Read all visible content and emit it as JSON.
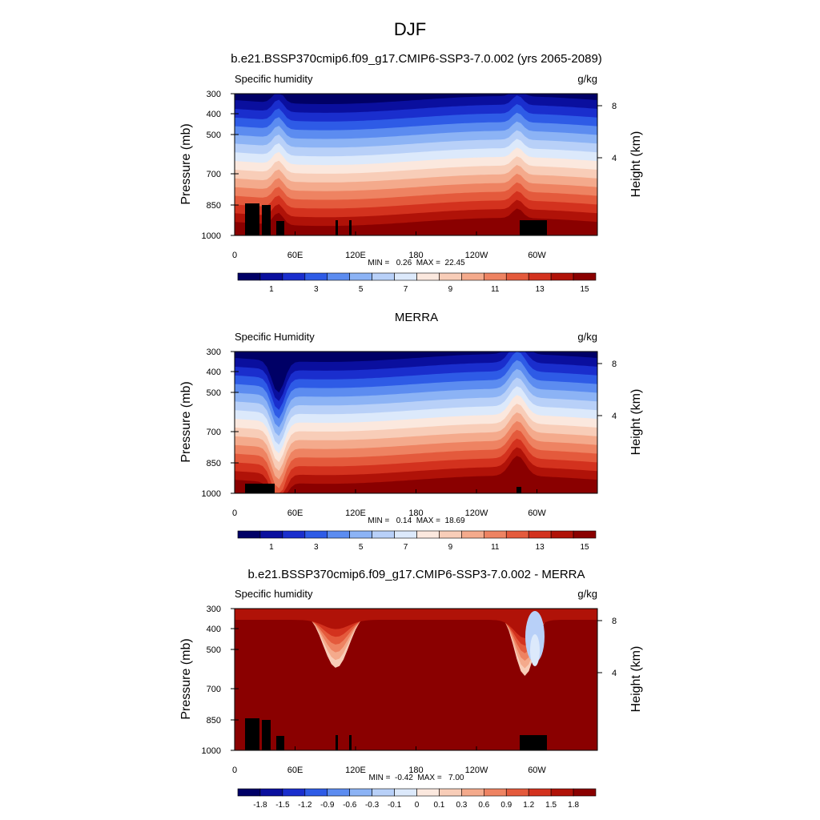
{
  "figure": {
    "title": "DJF"
  },
  "colorscales": {
    "abs": {
      "colors": [
        "#000066",
        "#0a0f9e",
        "#1a2ecd",
        "#2e5be6",
        "#5c8cf0",
        "#8cb3f5",
        "#b8d0f8",
        "#dce9fb",
        "#fbe8de",
        "#f8cdb8",
        "#f4aa8c",
        "#ee8362",
        "#e45a3c",
        "#d3321e",
        "#b01208",
        "#8a0000"
      ],
      "tick_labels": [
        "1",
        "3",
        "5",
        "7",
        "9",
        "11",
        "13",
        "15"
      ],
      "tick_boundaries": [
        1,
        3,
        5,
        7,
        9,
        11,
        13,
        15
      ]
    },
    "diff": {
      "colors": [
        "#000066",
        "#0a0f9e",
        "#1a2ecd",
        "#2e5be6",
        "#5c8cf0",
        "#8cb3f5",
        "#b8d0f8",
        "#dce9fb",
        "#fbe8de",
        "#f8cdb8",
        "#f4aa8c",
        "#ee8362",
        "#e45a3c",
        "#d3321e",
        "#b01208",
        "#8a0000"
      ],
      "tick_labels": [
        "-1.8",
        "-1.5",
        "-1.2",
        "-0.9",
        "-0.6",
        "-0.3",
        "-0.1",
        "0",
        "0.1",
        "0.3",
        "0.6",
        "0.9",
        "1.2",
        "1.5",
        "1.8"
      ],
      "tick_boundaries": [
        1,
        2,
        3,
        4,
        5,
        6,
        7,
        8,
        9,
        10,
        11,
        12,
        13,
        14,
        15
      ]
    }
  },
  "chart_data": [
    {
      "type": "heatmap",
      "title": "b.e21.BSSP370cmip6.f09_g17.CMIP6-SSP3-7.0.002 (yrs 2065-2089)",
      "left_string": "Specific humidity",
      "right_string": "g/kg",
      "ylabel": "Pressure (mb)",
      "y2label": "Height (km)",
      "xticks": [
        "0",
        "60E",
        "120E",
        "180",
        "120W",
        "60W"
      ],
      "yticks": [
        "300",
        "400",
        "500",
        "700",
        "850",
        "1000"
      ],
      "y2ticks": [
        "8",
        "4"
      ],
      "stats": "MIN =   0.26  MAX =  22.45",
      "min": 0.26,
      "max": 22.45,
      "scale": "abs"
    },
    {
      "type": "heatmap",
      "title": "MERRA",
      "left_string": "Specific Humidity",
      "right_string": "g/kg",
      "ylabel": "Pressure (mb)",
      "y2label": "Height (km)",
      "xticks": [
        "0",
        "60E",
        "120E",
        "180",
        "120W",
        "60W"
      ],
      "yticks": [
        "300",
        "400",
        "500",
        "700",
        "850",
        "1000"
      ],
      "y2ticks": [
        "8",
        "4"
      ],
      "stats": "MIN =   0.14  MAX =  18.69",
      "min": 0.14,
      "max": 18.69,
      "scale": "abs"
    },
    {
      "type": "heatmap",
      "title": "b.e21.BSSP370cmip6.f09_g17.CMIP6-SSP3-7.0.002 - MERRA",
      "left_string": "Specific humidity",
      "right_string": "g/kg",
      "ylabel": "Pressure (mb)",
      "y2label": "Height (km)",
      "xticks": [
        "0",
        "60E",
        "120E",
        "180",
        "120W",
        "60W"
      ],
      "yticks": [
        "300",
        "400",
        "500",
        "700",
        "850",
        "1000"
      ],
      "y2ticks": [
        "8",
        "4"
      ],
      "stats": "MIN =  -0.42  MAX =   7.00",
      "min": -0.42,
      "max": 7.0,
      "scale": "diff"
    }
  ]
}
